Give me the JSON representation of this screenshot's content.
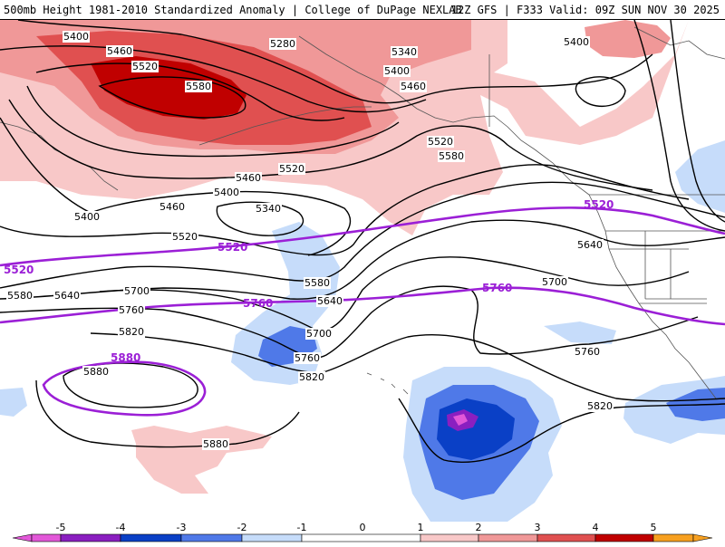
{
  "header": {
    "left_title": "500mb Height 1981-2010 Standardized Anomaly | College of DuPage NEXLAB",
    "right_title": "12Z GFS | F333 Valid: 09Z SUN NOV 30 2025"
  },
  "colors": {
    "anom_pos_1": "#f8c8c8",
    "anom_pos_2": "#f09898",
    "anom_pos_3": "#e05050",
    "anom_pos_4": "#c00000",
    "anom_neg_1": "#c6dcfa",
    "anom_neg_2": "#4f79e8",
    "anom_neg_3": "#0a40c6",
    "anom_neg_4": "#8a1fc0",
    "anom_neg_5": "#e257d8",
    "highlight_contour": "#9b1fd6",
    "height_contour": "#000000"
  },
  "height_labels": [
    "5400",
    "5460",
    "5520",
    "5580",
    "5280",
    "5340",
    "5400",
    "5460",
    "5400",
    "5520",
    "5580",
    "5520",
    "5460",
    "5400",
    "5340",
    "5460",
    "5400",
    "5520",
    "5580",
    "5640",
    "5580",
    "5700",
    "5640",
    "5760",
    "5700",
    "5820",
    "5760",
    "5820",
    "5880",
    "5880",
    "5820",
    "5760",
    "5700",
    "5640"
  ],
  "highlight_labels": [
    "5520",
    "5520",
    "5520",
    "5760",
    "5760",
    "5880"
  ],
  "colorbar": {
    "ticks": [
      "-5",
      "-4",
      "-3",
      "-2",
      "-1",
      "0",
      "1",
      "2",
      "3",
      "4",
      "5"
    ]
  }
}
